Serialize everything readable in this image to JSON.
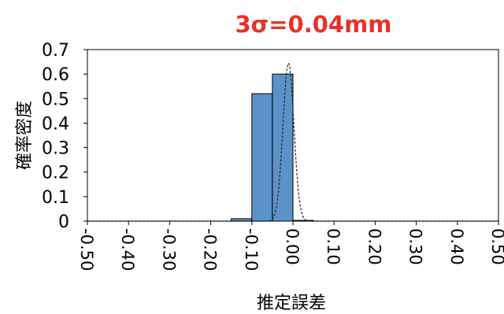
{
  "chart_data": {
    "type": "bar",
    "title": "3σ=0.04mm",
    "title_color": "#e8312a",
    "xlabel": "推定誤差",
    "ylabel": "確率密度",
    "ylim": [
      0,
      0.7
    ],
    "yticks": [
      "0",
      "0.1",
      "0.2",
      "0.3",
      "0.4",
      "0.5",
      "0.6",
      "0.7"
    ],
    "xlim": [
      -0.5,
      0.5
    ],
    "xticks": [
      "-0.50",
      "-0.40",
      "-0.30",
      "-0.20",
      "-0.10",
      "0.00",
      "0.10",
      "0.20",
      "0.30",
      "0.40",
      "0.50"
    ],
    "bin_width": 0.05,
    "bin_centers": [
      -0.125,
      -0.075,
      -0.025,
      0.025
    ],
    "values": [
      0.01,
      0.52,
      0.6,
      0.003
    ],
    "bar_color": "#5b93c9",
    "fit_curve": {
      "type": "normal",
      "mean": -0.011,
      "sigma": 0.0133,
      "peak": 0.645,
      "style": "dashed"
    },
    "grid": false,
    "legend": "none"
  }
}
